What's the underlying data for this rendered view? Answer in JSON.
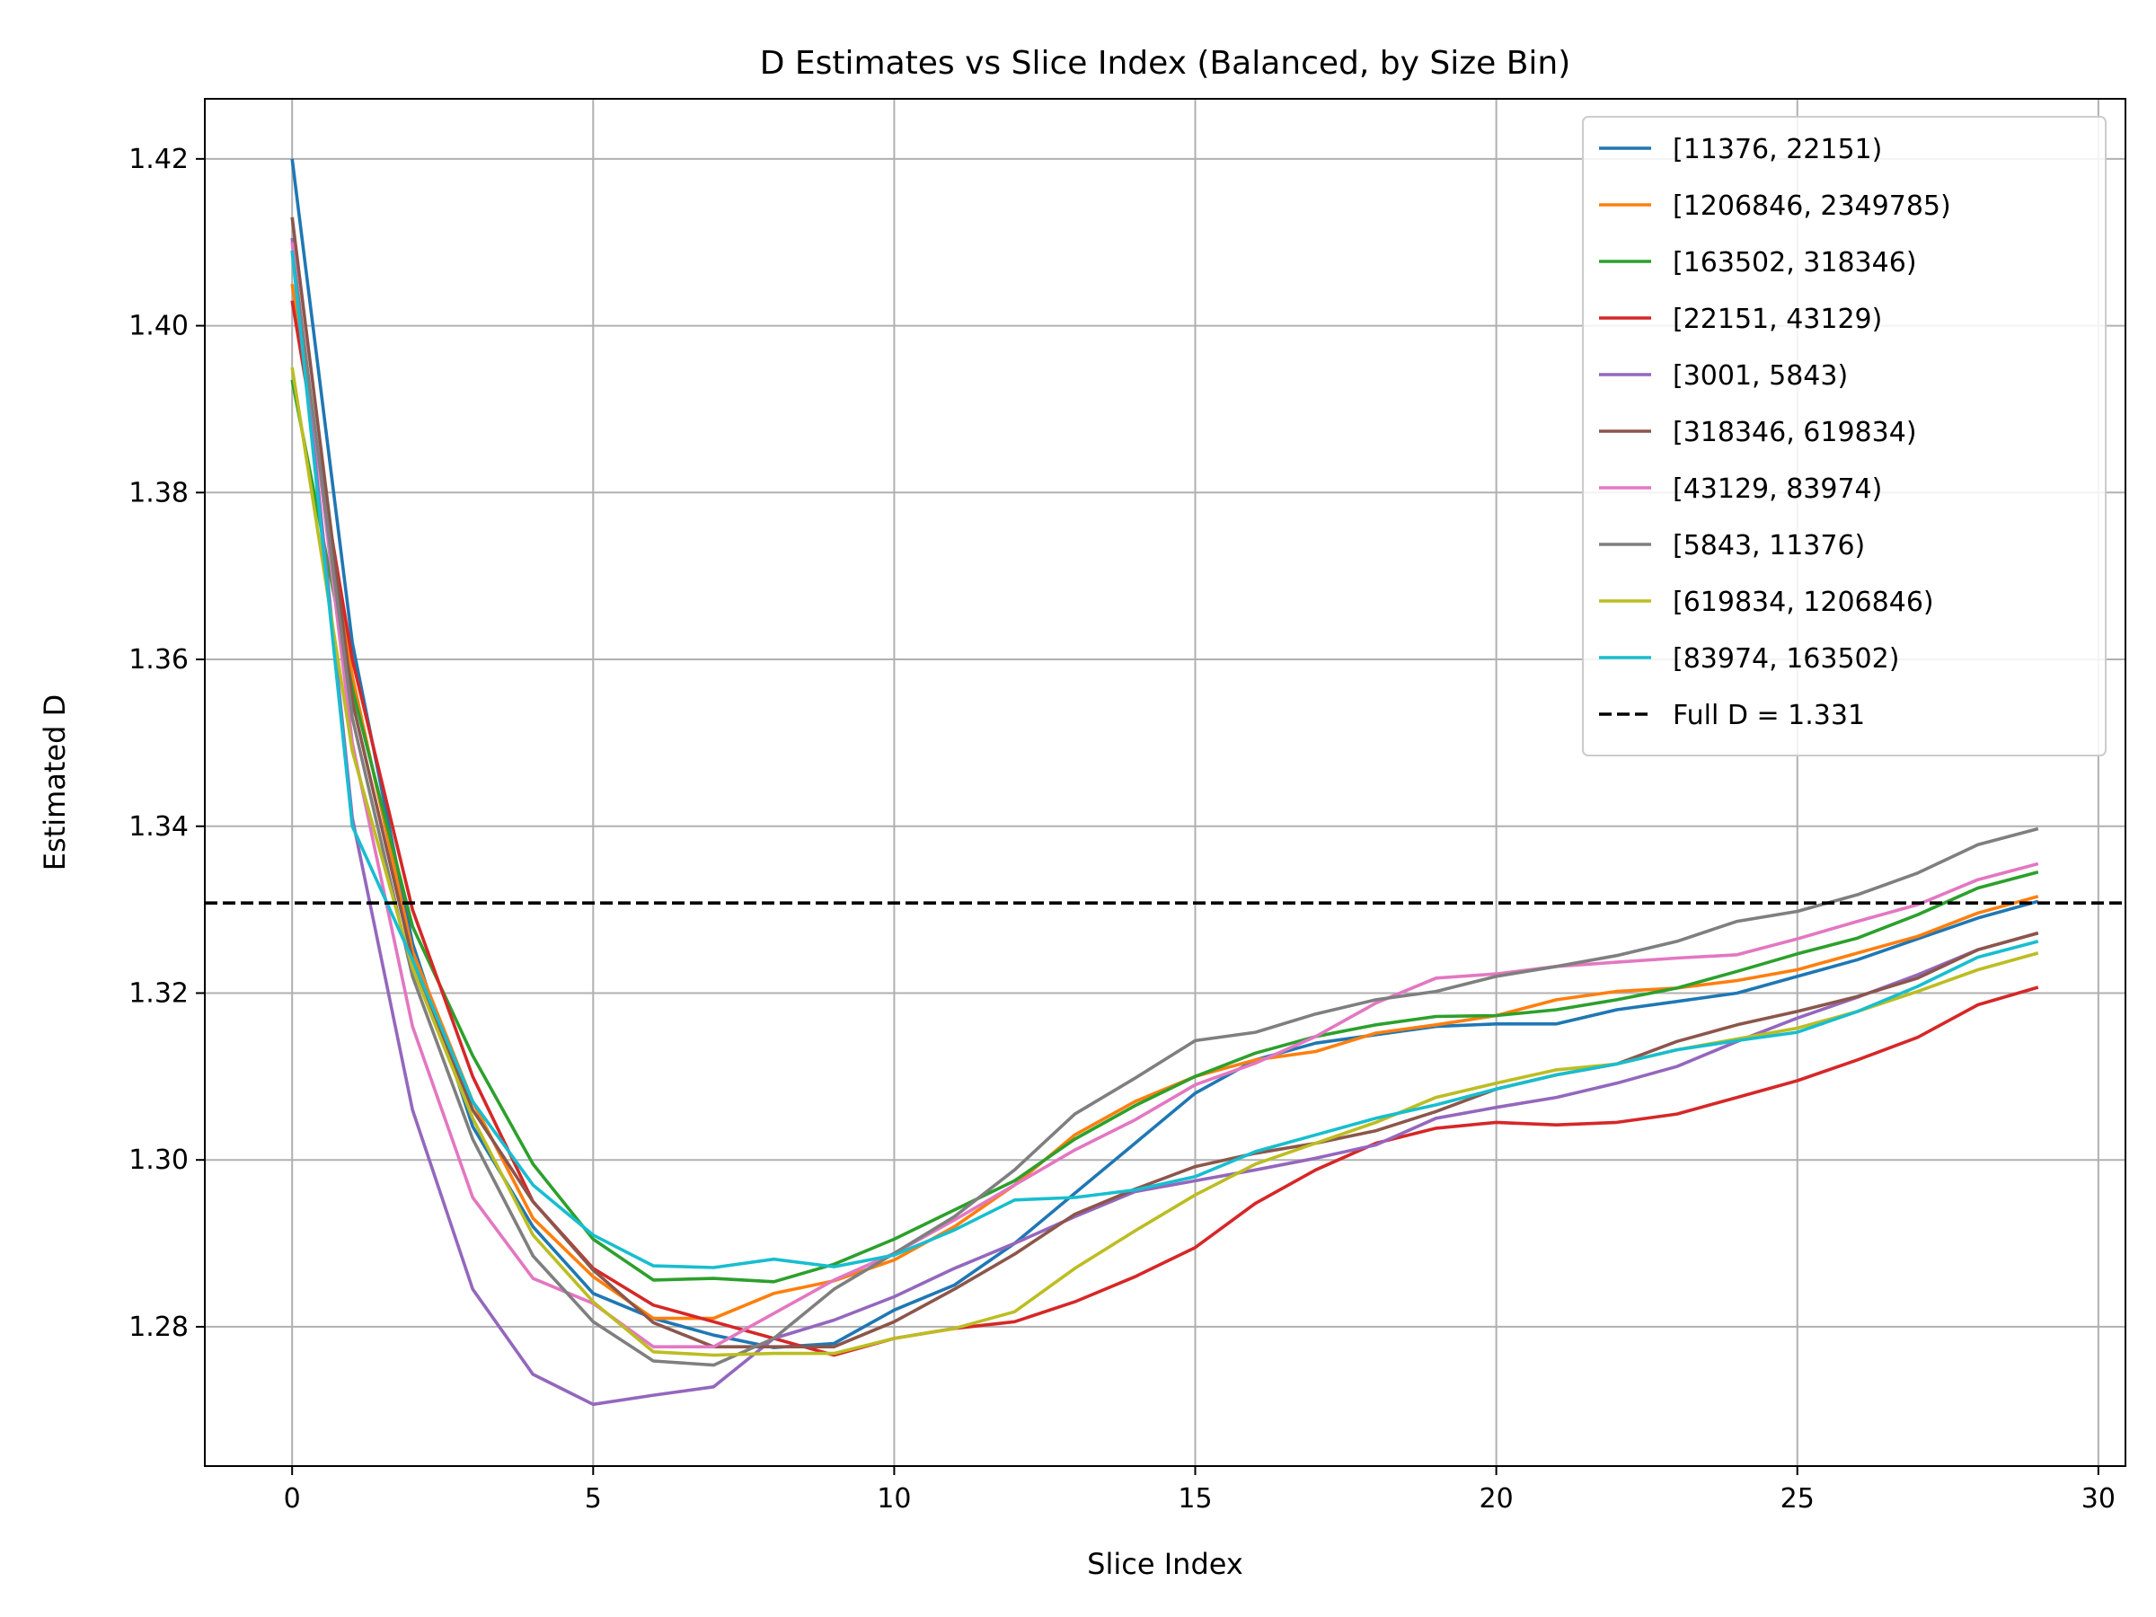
{
  "chart_data": {
    "type": "line",
    "title": "D Estimates vs Slice Index (Balanced, by Size Bin)",
    "xlabel": "Slice Index",
    "ylabel": "Estimated D",
    "xlim": [
      -1.45,
      30.45
    ],
    "ylim": [
      1.2633,
      1.4272
    ],
    "xticks": [
      0,
      5,
      10,
      15,
      20,
      25,
      30
    ],
    "yticks": [
      1.28,
      1.3,
      1.32,
      1.34,
      1.36,
      1.38,
      1.4,
      1.42
    ],
    "xtick_labels": [
      "0",
      "5",
      "10",
      "15",
      "20",
      "25",
      "30"
    ],
    "ytick_labels": [
      "1.28",
      "1.30",
      "1.32",
      "1.34",
      "1.36",
      "1.38",
      "1.40",
      "1.42"
    ],
    "grid": true,
    "legend_position": "top-right",
    "x": [
      0,
      1,
      2,
      3,
      4,
      5,
      6,
      7,
      8,
      9,
      10,
      11,
      12,
      13,
      14,
      15,
      16,
      17,
      18,
      19,
      20,
      21,
      22,
      23,
      24,
      25,
      26,
      27,
      28,
      29
    ],
    "series": [
      {
        "name": "[11376, 22151)",
        "color": "#1f77b4",
        "values": [
          1.42,
          1.362,
          1.326,
          1.304,
          1.292,
          1.284,
          1.281,
          1.279,
          1.2775,
          1.278,
          1.282,
          1.285,
          1.29,
          1.296,
          1.302,
          1.308,
          1.312,
          1.314,
          1.315,
          1.316,
          1.3163,
          1.3163,
          1.318,
          1.319,
          1.32,
          1.322,
          1.324,
          1.3265,
          1.329,
          1.331
        ]
      },
      {
        "name": "[1206846, 2349785)",
        "color": "#ff7f0e",
        "values": [
          1.405,
          1.358,
          1.325,
          1.307,
          1.293,
          1.286,
          1.281,
          1.281,
          1.284,
          1.2855,
          1.288,
          1.292,
          1.297,
          1.303,
          1.307,
          1.31,
          1.312,
          1.313,
          1.3152,
          1.3162,
          1.3173,
          1.3192,
          1.3202,
          1.3206,
          1.3215,
          1.3228,
          1.3248,
          1.3268,
          1.3296,
          1.3316
        ]
      },
      {
        "name": "[163502, 318346)",
        "color": "#2ca02c",
        "values": [
          1.3935,
          1.3565,
          1.328,
          1.3125,
          1.2995,
          1.2905,
          1.2856,
          1.2858,
          1.2854,
          1.2875,
          1.2905,
          1.294,
          1.2975,
          1.3025,
          1.3065,
          1.31,
          1.3128,
          1.3148,
          1.3162,
          1.3172,
          1.3173,
          1.318,
          1.3192,
          1.3206,
          1.3226,
          1.3247,
          1.3266,
          1.3294,
          1.3326,
          1.3345
        ]
      },
      {
        "name": "[22151, 43129)",
        "color": "#d62728",
        "values": [
          1.403,
          1.36,
          1.33,
          1.31,
          1.295,
          1.287,
          1.2826,
          1.2806,
          1.2786,
          1.2766,
          1.2786,
          1.2798,
          1.2806,
          1.283,
          1.286,
          1.2895,
          1.2948,
          1.2988,
          1.302,
          1.3038,
          1.3045,
          1.3042,
          1.3045,
          1.3055,
          1.3075,
          1.3095,
          1.312,
          1.3147,
          1.3186,
          1.3207
        ]
      },
      {
        "name": "[3001, 5843)",
        "color": "#9467bd",
        "values": [
          1.4105,
          1.341,
          1.306,
          1.2845,
          1.2743,
          1.2707,
          1.2718,
          1.2728,
          1.2786,
          1.2808,
          1.2836,
          1.287,
          1.29,
          1.2932,
          1.2962,
          1.2975,
          1.2988,
          1.3002,
          1.3018,
          1.305,
          1.3063,
          1.3075,
          1.3092,
          1.3112,
          1.3142,
          1.317,
          1.3195,
          1.3222,
          1.3252,
          1.3272
        ]
      },
      {
        "name": "[318346, 619834)",
        "color": "#8c564b",
        "values": [
          1.413,
          1.355,
          1.324,
          1.306,
          1.295,
          1.2868,
          1.2805,
          1.2776,
          1.2776,
          1.2776,
          1.2806,
          1.2845,
          1.2887,
          1.2935,
          1.2965,
          1.2992,
          1.3008,
          1.302,
          1.3035,
          1.3058,
          1.3085,
          1.3102,
          1.3115,
          1.3142,
          1.3162,
          1.3178,
          1.3196,
          1.3218,
          1.3252,
          1.3272
        ]
      },
      {
        "name": "[43129, 83974)",
        "color": "#e377c2",
        "values": [
          1.41,
          1.35,
          1.316,
          1.2955,
          1.2858,
          1.2828,
          1.2776,
          1.2776,
          1.2816,
          1.2856,
          1.2888,
          1.2928,
          1.297,
          1.3012,
          1.3048,
          1.309,
          1.3116,
          1.3148,
          1.3188,
          1.3218,
          1.3223,
          1.3232,
          1.3237,
          1.3242,
          1.3246,
          1.3265,
          1.3286,
          1.3306,
          1.3336,
          1.3355
        ]
      },
      {
        "name": "[5843, 11376)",
        "color": "#7f7f7f",
        "values": [
          1.409,
          1.353,
          1.322,
          1.3025,
          1.2885,
          1.2806,
          1.2759,
          1.2754,
          1.2786,
          1.2845,
          1.2888,
          1.2932,
          1.2988,
          1.3055,
          1.3098,
          1.3143,
          1.3153,
          1.3175,
          1.3192,
          1.3202,
          1.322,
          1.3232,
          1.3245,
          1.3262,
          1.3286,
          1.3298,
          1.3318,
          1.3344,
          1.3378,
          1.3397
        ]
      },
      {
        "name": "[619834, 1206846)",
        "color": "#bcbd22",
        "values": [
          1.395,
          1.349,
          1.323,
          1.305,
          1.291,
          1.283,
          1.277,
          1.2766,
          1.2768,
          1.2768,
          1.2786,
          1.2798,
          1.2818,
          1.287,
          1.2915,
          1.2958,
          1.2995,
          1.302,
          1.3045,
          1.3075,
          1.3092,
          1.3108,
          1.3115,
          1.3132,
          1.3145,
          1.3158,
          1.3178,
          1.3202,
          1.3228,
          1.3248
        ]
      },
      {
        "name": "[83974, 163502)",
        "color": "#17becf",
        "values": [
          1.409,
          1.34,
          1.324,
          1.307,
          1.297,
          1.291,
          1.2873,
          1.2871,
          1.2881,
          1.2872,
          1.2886,
          1.2916,
          1.2952,
          1.2955,
          1.2964,
          1.298,
          1.301,
          1.303,
          1.305,
          1.3066,
          1.3085,
          1.3102,
          1.3115,
          1.3132,
          1.3143,
          1.3153,
          1.3178,
          1.3208,
          1.3243,
          1.3262
        ]
      }
    ],
    "reference_line": {
      "name": "Full D = 1.331",
      "value": 1.3308,
      "color": "#000000",
      "style": "dashed"
    }
  }
}
